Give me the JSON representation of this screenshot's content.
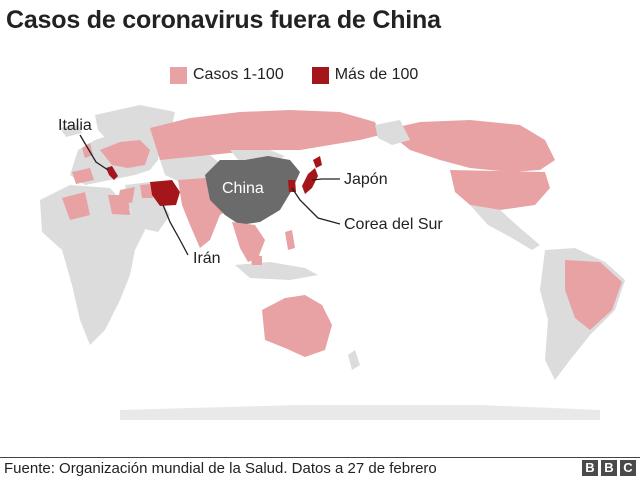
{
  "title": "Casos de coronavirus fuera de China",
  "legend": [
    {
      "label": "Casos 1-100",
      "color": "#e8a2a4"
    },
    {
      "label": "Más de 100",
      "color": "#a4161a"
    }
  ],
  "map_labels": {
    "china": "China",
    "italia": "Italia",
    "japon": "Japón",
    "corea": "Corea del Sur",
    "iran": "Irán"
  },
  "colors": {
    "no_cases": "#dcdcdc",
    "low": "#e8a2a4",
    "high": "#a4161a",
    "china": "#6b6b6b"
  },
  "source": "Fuente: Organización mundial de la Salud. Datos a 27 de febrero",
  "logo": "BBC"
}
